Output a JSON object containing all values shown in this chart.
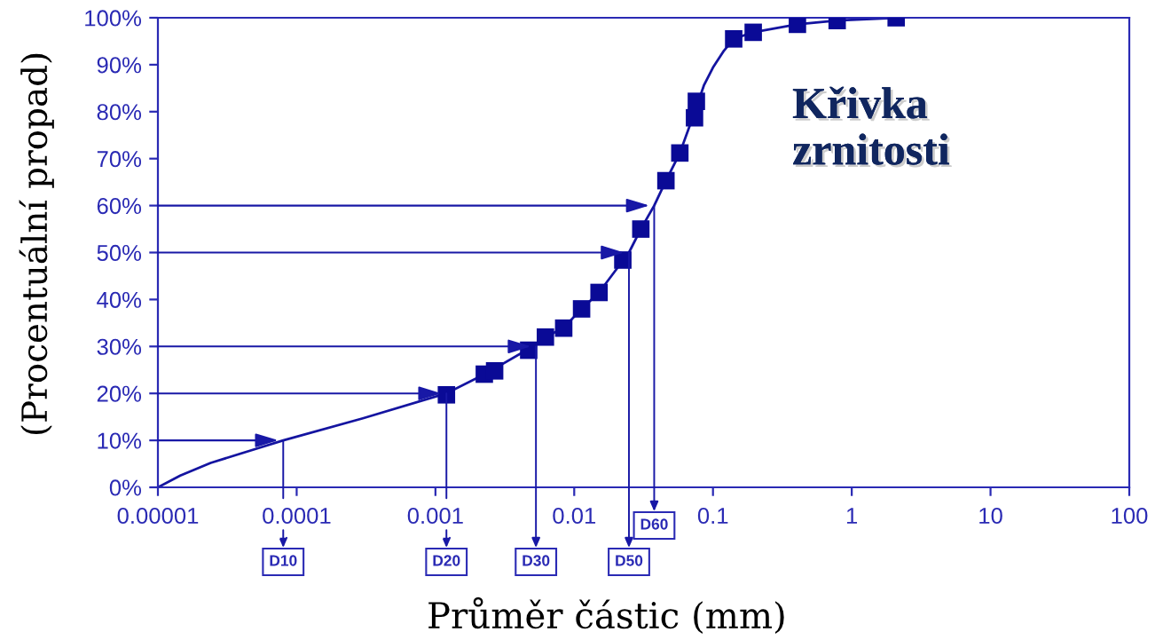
{
  "chart_data": {
    "type": "line",
    "title": "Křivka\nzrnitosti",
    "xlabel": "Průměr částic (mm)",
    "ylabel": "(Procentuální propad)",
    "log": "x",
    "xlim": [
      1e-05,
      100
    ],
    "ylim": [
      0,
      100
    ],
    "xticks": [
      {
        "value": 1e-05,
        "label": "0.00001"
      },
      0.0001,
      0.001,
      0.01,
      0.1,
      1,
      10,
      100
    ],
    "yticks": [
      {
        "value": 0,
        "label": "0%"
      },
      {
        "value": 10,
        "label": "10%"
      },
      {
        "value": 20,
        "label": "20%"
      },
      {
        "value": 30,
        "label": "30%"
      },
      {
        "value": 40,
        "label": "40%"
      },
      {
        "value": 50,
        "label": "50%"
      },
      {
        "value": 60,
        "label": "60%"
      },
      {
        "value": 70,
        "label": "70%"
      },
      {
        "value": 80,
        "label": "80%"
      },
      {
        "value": 90,
        "label": "90%"
      },
      {
        "value": 100,
        "label": "100%"
      }
    ],
    "series": [
      {
        "color": "#1414a0",
        "line_style": "solid",
        "x": [
          1e-05,
          1.45e-05,
          2.4e-05,
          4.5e-05,
          8e-05,
          0.0003,
          0.0012,
          0.0024,
          0.0047,
          0.0062,
          0.0084,
          0.0113,
          0.0151,
          0.0248,
          0.0302,
          0.0377,
          0.0458,
          0.0577,
          0.075,
          0.086,
          0.1,
          0.12,
          0.141,
          0.195,
          0.406,
          0.785,
          2.09
        ],
        "values": [
          0,
          2.5,
          5.2,
          7.7,
          10,
          14.7,
          20,
          24.5,
          29.5,
          32,
          34,
          38,
          41.5,
          50,
          55,
          60,
          65.3,
          71.2,
          80.5,
          85.6,
          89.4,
          93,
          95.5,
          96.9,
          98.6,
          99.4,
          100
        ]
      },
      {
        "type": "scatter",
        "color": "#0a0a96",
        "marker": "square",
        "x": [
          0.0012,
          0.00225,
          0.00267,
          0.0047,
          0.0062,
          0.0084,
          0.0113,
          0.0151,
          0.0224,
          0.0302,
          0.0458,
          0.0577,
          0.0736,
          0.0759,
          0.141,
          0.195,
          0.406,
          0.785,
          2.09
        ],
        "values": [
          19.7,
          24.1,
          24.8,
          29.2,
          32,
          33.9,
          38,
          41.5,
          48.4,
          55,
          65.3,
          71.2,
          78.7,
          82.2,
          95.5,
          96.9,
          98.6,
          99.4,
          100
        ]
      }
    ],
    "annotations": [
      {
        "text": "D10",
        "x": 8e-05,
        "y": 10
      },
      {
        "text": "D20",
        "x": 0.0012,
        "y": 20
      },
      {
        "text": "D30",
        "x": 0.0053,
        "y": 30
      },
      {
        "text": "D50",
        "x": 0.0248,
        "y": 50
      },
      {
        "text": "D60",
        "x": 0.0377,
        "y": 60
      }
    ]
  }
}
